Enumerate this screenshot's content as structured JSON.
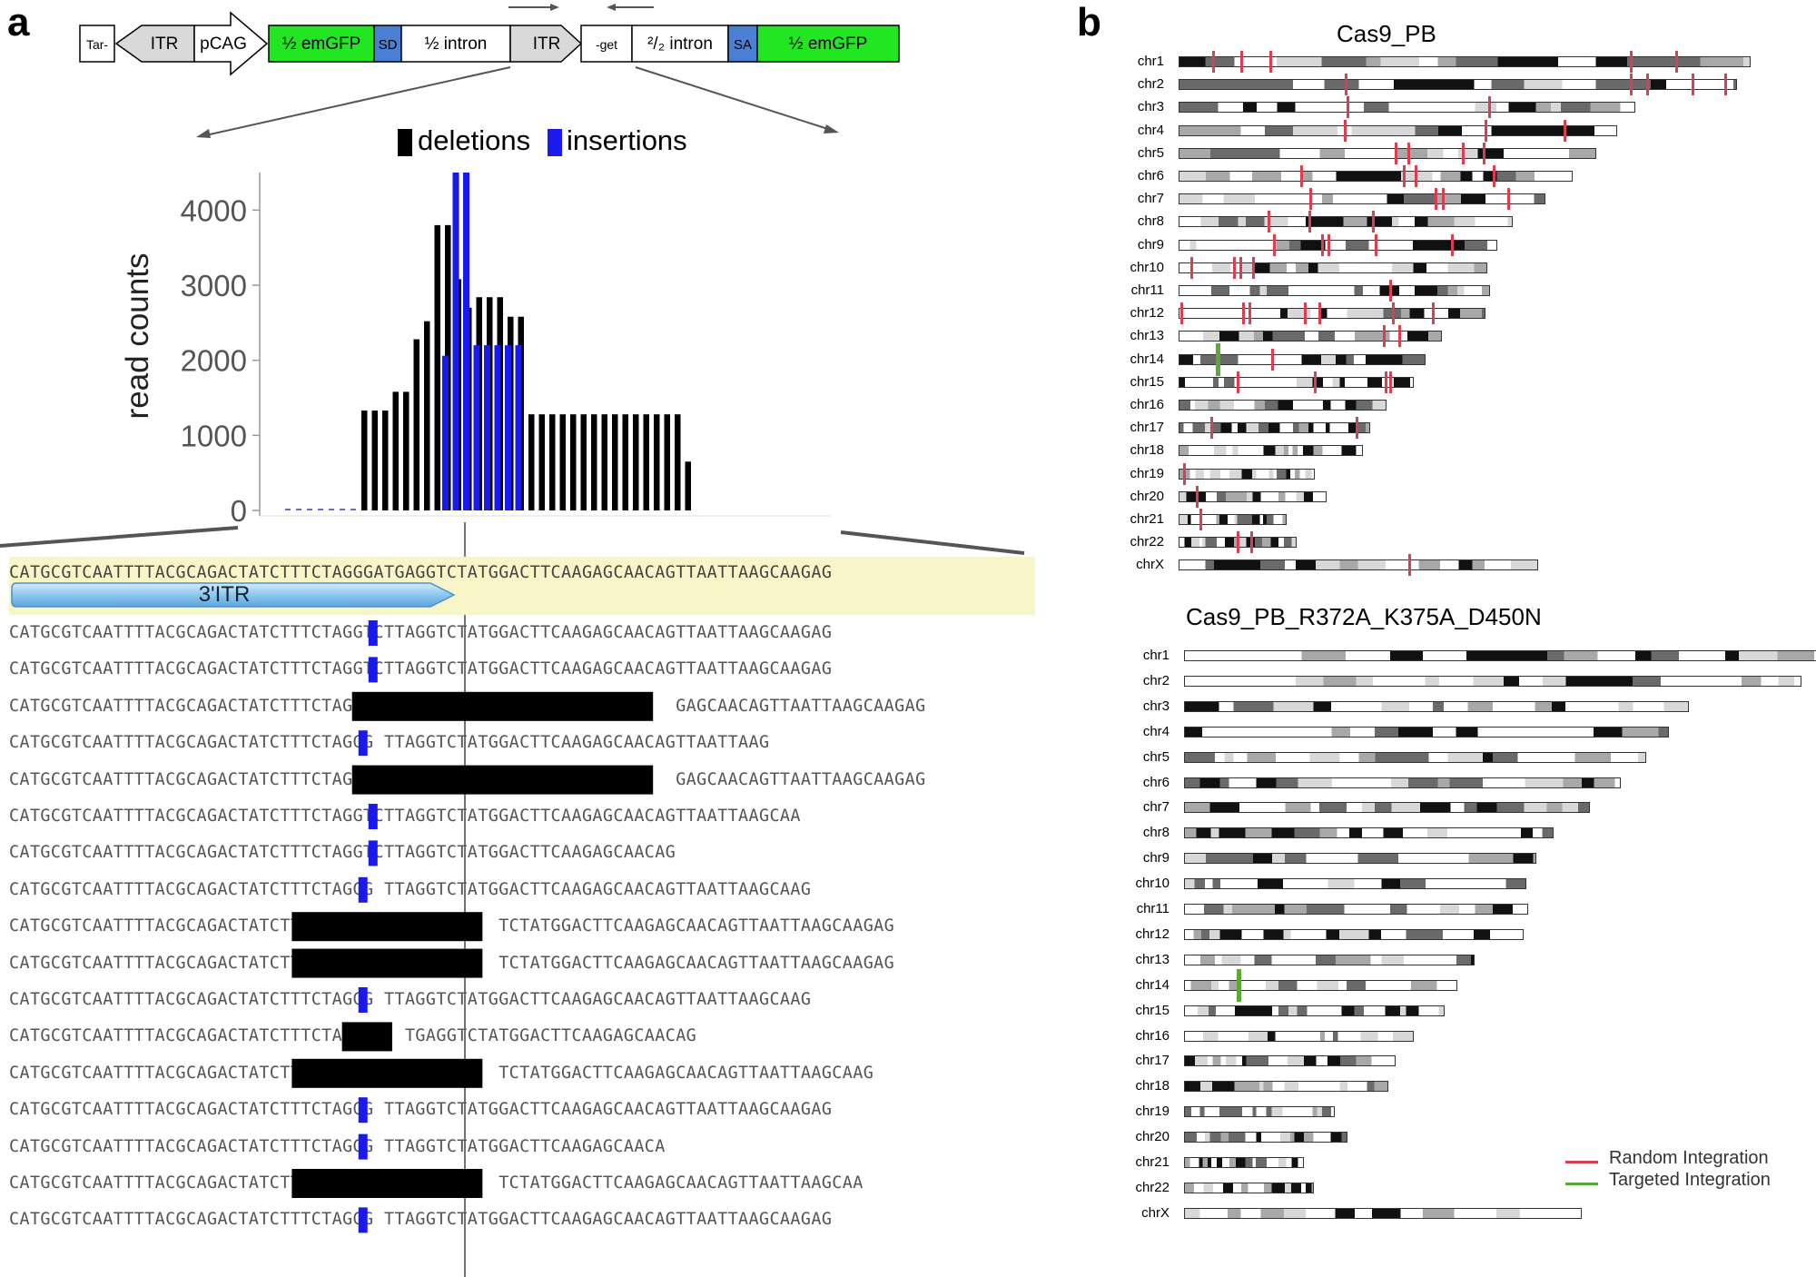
{
  "panel_a": {
    "letter": "a",
    "construct": {
      "boxes": [
        {
          "label": "Tar-",
          "color": "#ffffff"
        },
        {
          "label": "ITR",
          "color": "#d9d9d9"
        },
        {
          "label": "pCAG",
          "color": "#ffffff"
        },
        {
          "label": "½ emGFP",
          "color": "#22e622"
        },
        {
          "label": "SD",
          "color": "#4a7fd4"
        },
        {
          "label": "½ intron",
          "color": "#ffffff"
        },
        {
          "label": "ITR",
          "color": "#d9d9d9"
        },
        {
          "label": "-get",
          "color": "#ffffff"
        },
        {
          "label": "²/₂ intron",
          "color": "#ffffff"
        },
        {
          "label": "SA",
          "color": "#4a7fd4"
        },
        {
          "label": "½ emGFP",
          "color": "#22e622"
        }
      ]
    },
    "legend": {
      "deletions": "deletions",
      "insertions": "insertions",
      "del_color": "#000000",
      "ins_color": "#1a1aee"
    },
    "chart_data": {
      "type": "bar",
      "ylabel": "read counts",
      "yticks": [
        "0",
        "1000",
        "2000",
        "3000",
        "4000"
      ],
      "ylim": [
        0,
        4500
      ],
      "series": [
        {
          "name": "deletions",
          "values": [
            1330,
            1330,
            1330,
            1580,
            1580,
            2280,
            2520,
            3800,
            3800,
            3080,
            2700,
            2840,
            2840,
            2840,
            2580,
            2580,
            1280,
            1280,
            1280,
            1280,
            1280,
            1280,
            1280,
            1280,
            1280,
            1280,
            1280,
            1280,
            1280,
            1280,
            1280,
            650
          ]
        },
        {
          "name": "insertions",
          "values": [
            2060,
            4500,
            4500,
            2200,
            2200,
            2200,
            2200,
            2200
          ]
        }
      ]
    },
    "reference": {
      "seq": "CATGCGTCAATTTTACGCAGACTATCTTTCTAGGGATGAGGTCTATGGACTTCAAGAGCAACAGTTAATTAAGCAAGAG",
      "feature": "3'ITR"
    },
    "reads": [
      "CATGCGTCAATTTTACGCAGACTATCTTTCTAGGTCTTAGGTCTATGGACTTCAAGAGCAACAGTTAATTAAGCAAGAG",
      "CATGCGTCAATTTTACGCAGACTATCTTTCTAGGTCTTAGGTCTATGGACTTCAAGAGCAACAGTTAATTAAGCAAGAG",
      "CATGCGTCAATTTTACGCAGACTATCTTTCTAGG                              GAGCAACAGTTAATTAAGCAAGAG",
      "CATGCGTCAATTTTACGCAGACTATCTTTCTAGGG TTAGGTCTATGGACTTCAAGAGCAACAGTTAATTAAG",
      "CATGCGTCAATTTTACGCAGACTATCTTTCTAGG                              GAGCAACAGTTAATTAAGCAAGAG",
      "CATGCGTCAATTTTACGCAGACTATCTTTCTAGGTCTTAGGTCTATGGACTTCAAGAGCAACAGTTAATTAAGCAA",
      "CATGCGTCAATTTTACGCAGACTATCTTTCTAGGTCTTAGGTCTATGGACTTCAAGAGCAACAG",
      "CATGCGTCAATTTTACGCAGACTATCTTTCTAGGG TTAGGTCTATGGACTTCAAGAGCAACAGTTAATTAAGCAAG",
      "CATGCGTCAATTTTACGCAGACTATCTT                   TCTATGGACTTCAAGAGCAACAGTTAATTAAGCAAGAG",
      "CATGCGTCAATTTTACGCAGACTATCTT                   TCTATGGACTTCAAGAGCAACAGTTAATTAAGCAAGAG",
      "CATGCGTCAATTTTACGCAGACTATCTTTCTAGGG TTAGGTCTATGGACTTCAAGAGCAACAGTTAATTAAGCAAG",
      "CATGCGTCAATTTTACGCAGACTATCTTTCTAG     TGAGGTCTATGGACTTCAAGAGCAACAG",
      "CATGCGTCAATTTTACGCAGACTATCTT                   TCTATGGACTTCAAGAGCAACAGTTAATTAAGCAAG",
      "CATGCGTCAATTTTACGCAGACTATCTTTCTAGGG TTAGGTCTATGGACTTCAAGAGCAACAGTTAATTAAGCAAGAG",
      "CATGCGTCAATTTTACGCAGACTATCTTTCTAGGG TTAGGTCTATGGACTTCAAGAGCAACA",
      "CATGCGTCAATTTTACGCAGACTATCTT                   TCTATGGACTTCAAGAGCAACAGTTAATTAAGCAA",
      "CATGCGTCAATTTTACGCAGACTATCTTTCTAGGG TTAGGTCTATGGACTTCAAGAGCAACAGTTAATTAAGCAAGAG"
    ],
    "read_events": [
      {
        "kind": "ins",
        "pos": 36
      },
      {
        "kind": "ins",
        "pos": 36
      },
      {
        "kind": "del",
        "start": 34,
        "end": 64
      },
      {
        "kind": "ins",
        "pos": 35
      },
      {
        "kind": "del",
        "start": 34,
        "end": 64
      },
      {
        "kind": "ins",
        "pos": 36
      },
      {
        "kind": "ins",
        "pos": 36
      },
      {
        "kind": "ins",
        "pos": 35
      },
      {
        "kind": "del",
        "start": 28,
        "end": 47
      },
      {
        "kind": "del",
        "start": 28,
        "end": 47
      },
      {
        "kind": "ins",
        "pos": 35
      },
      {
        "kind": "del",
        "start": 33,
        "end": 38
      },
      {
        "kind": "del",
        "start": 28,
        "end": 47
      },
      {
        "kind": "ins",
        "pos": 35
      },
      {
        "kind": "ins",
        "pos": 35
      },
      {
        "kind": "del",
        "start": 28,
        "end": 47
      },
      {
        "kind": "ins",
        "pos": 35
      }
    ]
  },
  "panel_b": {
    "letter": "b",
    "legend": {
      "random": "Random  Integration",
      "targeted": "Targeted  Integration",
      "random_color": "#d64050",
      "targeted_color": "#5aa83a"
    },
    "karyotypes": [
      {
        "title": "Cas9_PB",
        "chromosomes": [
          {
            "name": "chr1",
            "len": 248,
            "random": [
              0.06,
              0.11,
              0.16,
              0.79,
              0.87
            ],
            "targeted": []
          },
          {
            "name": "chr2",
            "len": 242,
            "random": [
              0.3,
              0.81,
              0.84,
              0.92,
              0.98
            ],
            "targeted": []
          },
          {
            "name": "chr3",
            "len": 198,
            "random": [
              0.37,
              0.68
            ],
            "targeted": []
          },
          {
            "name": "chr4",
            "len": 190,
            "random": [
              0.38,
              0.7,
              0.88
            ],
            "targeted": []
          },
          {
            "name": "chr5",
            "len": 181,
            "random": [
              0.52,
              0.55,
              0.68,
              0.73
            ],
            "targeted": []
          },
          {
            "name": "chr6",
            "len": 171,
            "random": [
              0.31,
              0.57,
              0.6,
              0.8
            ],
            "targeted": []
          },
          {
            "name": "chr7",
            "len": 159,
            "random": [
              0.36,
              0.7,
              0.72,
              0.9
            ],
            "targeted": []
          },
          {
            "name": "chr8",
            "len": 145,
            "random": [
              0.27,
              0.39,
              0.58
            ],
            "targeted": []
          },
          {
            "name": "chr9",
            "len": 138,
            "random": [
              0.3,
              0.45,
              0.47,
              0.62,
              0.86
            ],
            "targeted": []
          },
          {
            "name": "chr10",
            "len": 134,
            "random": [
              0.04,
              0.18,
              0.2,
              0.24
            ],
            "targeted": []
          },
          {
            "name": "chr11",
            "len": 135,
            "random": [
              0.68
            ],
            "targeted": []
          },
          {
            "name": "chr12",
            "len": 133,
            "random": [
              0.01,
              0.21,
              0.23,
              0.41,
              0.46,
              0.7,
              0.83
            ],
            "targeted": []
          },
          {
            "name": "chr13",
            "len": 114,
            "random": [
              0.78,
              0.84
            ],
            "targeted": []
          },
          {
            "name": "chr14",
            "len": 107,
            "random": [
              0.38
            ],
            "targeted": [
              0.16
            ]
          },
          {
            "name": "chr15",
            "len": 102,
            "random": [
              0.25,
              0.58,
              0.88,
              0.9
            ],
            "targeted": []
          },
          {
            "name": "chr16",
            "len": 90,
            "random": [],
            "targeted": []
          },
          {
            "name": "chr17",
            "len": 83,
            "random": [
              0.17,
              0.93
            ],
            "targeted": []
          },
          {
            "name": "chr18",
            "len": 80,
            "random": [],
            "targeted": []
          },
          {
            "name": "chr19",
            "len": 59,
            "random": [
              0.04
            ],
            "targeted": []
          },
          {
            "name": "chr20",
            "len": 64,
            "random": [
              0.12
            ],
            "targeted": []
          },
          {
            "name": "chr21",
            "len": 47,
            "random": [
              0.2
            ],
            "targeted": []
          },
          {
            "name": "chr22",
            "len": 51,
            "random": [
              0.5,
              0.62
            ],
            "targeted": []
          },
          {
            "name": "chrX",
            "len": 156,
            "random": [
              0.64
            ],
            "targeted": []
          }
        ]
      },
      {
        "title": "Cas9_PB_R372A_K375A_D450N",
        "chromosomes": [
          {
            "name": "chr1",
            "len": 248,
            "random": [],
            "targeted": []
          },
          {
            "name": "chr2",
            "len": 242,
            "random": [],
            "targeted": []
          },
          {
            "name": "chr3",
            "len": 198,
            "random": [],
            "targeted": []
          },
          {
            "name": "chr4",
            "len": 190,
            "random": [],
            "targeted": []
          },
          {
            "name": "chr5",
            "len": 181,
            "random": [],
            "targeted": []
          },
          {
            "name": "chr6",
            "len": 171,
            "random": [],
            "targeted": []
          },
          {
            "name": "chr7",
            "len": 159,
            "random": [],
            "targeted": []
          },
          {
            "name": "chr8",
            "len": 145,
            "random": [],
            "targeted": []
          },
          {
            "name": "chr9",
            "len": 138,
            "random": [],
            "targeted": []
          },
          {
            "name": "chr10",
            "len": 134,
            "random": [],
            "targeted": []
          },
          {
            "name": "chr11",
            "len": 135,
            "random": [],
            "targeted": []
          },
          {
            "name": "chr12",
            "len": 133,
            "random": [],
            "targeted": []
          },
          {
            "name": "chr13",
            "len": 114,
            "random": [],
            "targeted": []
          },
          {
            "name": "chr14",
            "len": 107,
            "random": [],
            "targeted": [
              0.2
            ]
          },
          {
            "name": "chr15",
            "len": 102,
            "random": [],
            "targeted": []
          },
          {
            "name": "chr16",
            "len": 90,
            "random": [],
            "targeted": []
          },
          {
            "name": "chr17",
            "len": 83,
            "random": [],
            "targeted": []
          },
          {
            "name": "chr18",
            "len": 80,
            "random": [],
            "targeted": []
          },
          {
            "name": "chr19",
            "len": 59,
            "random": [],
            "targeted": []
          },
          {
            "name": "chr20",
            "len": 64,
            "random": [],
            "targeted": []
          },
          {
            "name": "chr21",
            "len": 47,
            "random": [],
            "targeted": []
          },
          {
            "name": "chr22",
            "len": 51,
            "random": [],
            "targeted": []
          },
          {
            "name": "chrX",
            "len": 156,
            "random": [],
            "targeted": []
          }
        ]
      }
    ]
  }
}
